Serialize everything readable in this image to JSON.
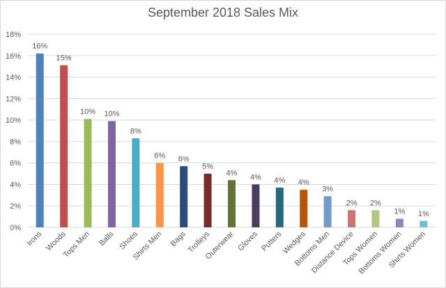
{
  "chart_data": {
    "type": "bar",
    "title": "September 2018 Sales Mix",
    "categories": [
      "Irons",
      "Woods",
      "Tops Men",
      "Balls",
      "Shoes",
      "Shirts Men",
      "Bags",
      "Trolleys",
      "Outerwear",
      "Gloves",
      "Putters",
      "Wedges",
      "Bottoms Men",
      "Distance Device",
      "Tops Women",
      "Bottoms Women",
      "Shirts Women"
    ],
    "values": [
      16.2,
      15.1,
      10.1,
      9.9,
      8.3,
      6.0,
      5.7,
      5.0,
      4.4,
      4.0,
      3.7,
      3.5,
      2.9,
      1.6,
      1.6,
      0.8,
      0.6
    ],
    "data_labels": [
      "16%",
      "15%",
      "10%",
      "10%",
      "8%",
      "6%",
      "6%",
      "5%",
      "4%",
      "4%",
      "4%",
      "4%",
      "3%",
      "2%",
      "2%",
      "1%",
      "1%"
    ],
    "colors": [
      "#4f81bd",
      "#c0504d",
      "#9bbb59",
      "#8064a2",
      "#4bacc6",
      "#f79646",
      "#2c4d75",
      "#772c2a",
      "#5f7530",
      "#4d3b62",
      "#276a7c",
      "#b65708",
      "#729aca",
      "#d07270",
      "#afca7e",
      "#9983b5",
      "#6fbdd3"
    ],
    "y_ticks": [
      "0%",
      "2%",
      "4%",
      "6%",
      "8%",
      "10%",
      "12%",
      "14%",
      "16%",
      "18%"
    ],
    "ylim": [
      0,
      18
    ],
    "grid": true,
    "legend": "none",
    "xlabel": "",
    "ylabel": ""
  }
}
